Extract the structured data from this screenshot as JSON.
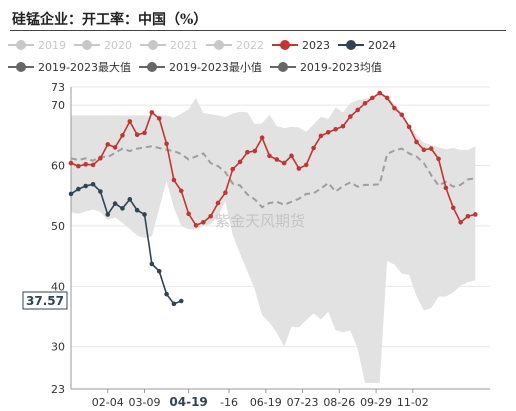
{
  "title": "硅锰企业：开工率：中国（%）",
  "watermark": "紫金天风期货",
  "colors": {
    "series_2023": "#c23531",
    "series_2024": "#2f4554",
    "avg": "#9e9e9e",
    "band": "#e2e2e2",
    "legend_disabled": "#c8c8c8",
    "legend_enabled_max_min": "#666666"
  },
  "legend": [
    {
      "label": "2019",
      "enabled": false,
      "color": "#c8c8c8",
      "icon": "line-circle-icon"
    },
    {
      "label": "2020",
      "enabled": false,
      "color": "#c8c8c8",
      "icon": "line-circle-icon"
    },
    {
      "label": "2021",
      "enabled": false,
      "color": "#c8c8c8",
      "icon": "line-circle-icon"
    },
    {
      "label": "2022",
      "enabled": false,
      "color": "#c8c8c8",
      "icon": "line-circle-icon"
    },
    {
      "label": "2023",
      "enabled": true,
      "color": "#c23531",
      "icon": "line-circle-icon"
    },
    {
      "label": "2024",
      "enabled": true,
      "color": "#2f4554",
      "icon": "line-circle-icon"
    },
    {
      "label": "2019-2023最大值",
      "enabled": true,
      "color": "#666666",
      "icon": "line-circle-icon"
    },
    {
      "label": "2019-2023最小值",
      "enabled": true,
      "color": "#666666",
      "icon": "line-circle-icon"
    },
    {
      "label": "2019-2023均值",
      "enabled": true,
      "color": "#666666",
      "icon": "line-circle-icon"
    }
  ],
  "chart_data": {
    "type": "line",
    "title": "硅锰企业：开工率：中国（%）",
    "ylim": [
      23,
      73
    ],
    "yticks": [
      23,
      30,
      40,
      50,
      60,
      70,
      73
    ],
    "x_range": [
      0,
      57
    ],
    "xticks": [
      {
        "label": "02-04",
        "x": 5
      },
      {
        "label": "03-09",
        "x": 10
      },
      {
        "label": "04-19",
        "x": 16,
        "highlight": true
      },
      {
        "label": "-16",
        "x": 21.5
      },
      {
        "label": "06-19",
        "x": 26.5
      },
      {
        "label": "07-23",
        "x": 31.5
      },
      {
        "label": "08-26",
        "x": 36.5
      },
      {
        "label": "09-29",
        "x": 41.5
      },
      {
        "label": "11-02",
        "x": 46.5
      }
    ],
    "last_value_label": "37.57",
    "series": [
      {
        "name": "2023",
        "values": [
          60.4,
          59.9,
          60.2,
          60.1,
          61.2,
          63.5,
          63.0,
          65.0,
          67.3,
          65.1,
          65.4,
          68.8,
          67.8,
          63.6,
          57.6,
          55.8,
          52.0,
          50.1,
          50.6,
          51.6,
          53.8,
          55.5,
          59.4,
          60.6,
          62.2,
          62.4,
          64.6,
          61.6,
          61.0,
          60.4,
          61.6,
          59.5,
          60.1,
          62.9,
          64.9,
          65.5,
          66.0,
          66.5,
          68.1,
          69.2,
          70.3,
          71.2,
          72.0,
          71.2,
          69.5,
          68.4,
          66.4,
          63.9,
          62.6,
          62.8,
          61.1,
          56.3,
          53.0,
          50.6,
          51.6,
          51.9
        ]
      },
      {
        "name": "2024",
        "values": [
          55.3,
          56.1,
          56.6,
          56.9,
          55.7,
          51.9,
          53.7,
          52.9,
          54.4,
          52.6,
          51.9,
          43.7,
          42.5,
          38.7,
          37.1,
          37.57
        ]
      },
      {
        "name": "2019-2023最大值",
        "values": [
          68.3,
          68.3,
          68.3,
          68.3,
          68.3,
          68.3,
          68.3,
          68.3,
          68.3,
          68.3,
          68.3,
          68.3,
          68.3,
          68.3,
          67.9,
          68.6,
          69.3,
          71.2,
          68.7,
          68.5,
          68.3,
          68.0,
          68.6,
          68.9,
          68.8,
          66.9,
          67.0,
          68.4,
          66.5,
          66.2,
          66.4,
          66.3,
          65.6,
          66.8,
          68.1,
          67.7,
          69.6,
          68.8,
          70.3,
          70.8,
          71.0,
          71.4,
          72.0,
          71.5,
          70.2,
          68.6,
          66.9,
          65.0,
          63.8,
          63.4,
          63.0,
          62.7,
          62.9,
          62.6,
          62.6,
          63.2
        ]
      },
      {
        "name": "2019-2023最小值",
        "values": [
          52.3,
          52.0,
          52.4,
          52.7,
          52.3,
          51.0,
          51.4,
          50.5,
          49.5,
          48.4,
          48.0,
          48.3,
          52.9,
          57.4,
          53.0,
          50.0,
          49.4,
          49.5,
          50.0,
          50.3,
          51.6,
          54.1,
          48.5,
          45.4,
          42.5,
          39.5,
          35.2,
          34.0,
          32.3,
          30.0,
          33.3,
          33.2,
          34.4,
          35.5,
          34.5,
          35.8,
          32.7,
          32.4,
          32.7,
          29.6,
          24.0,
          24.0,
          24.0,
          44.2,
          43.6,
          42.1,
          41.9,
          38.4,
          36.0,
          36.4,
          38.3,
          38.3,
          39.0,
          40.1,
          40.7,
          41.0
        ]
      },
      {
        "name": "2019-2023均值",
        "values": [
          61.2,
          60.9,
          61.2,
          60.8,
          61.5,
          61.4,
          62.1,
          62.8,
          62.4,
          62.8,
          63.0,
          63.2,
          62.9,
          62.6,
          62.4,
          61.9,
          61.0,
          61.5,
          62.0,
          60.4,
          59.9,
          58.9,
          57.0,
          56.7,
          55.2,
          54.4,
          53.1,
          53.8,
          54.0,
          53.5,
          54.0,
          54.5,
          55.3,
          55.4,
          56.2,
          57.1,
          55.7,
          56.6,
          57.2,
          56.5,
          56.8,
          56.8,
          56.9,
          61.9,
          62.5,
          62.8,
          62.0,
          61.5,
          60.4,
          58.4,
          56.7,
          57.3,
          56.5,
          56.8,
          57.7,
          57.9
        ]
      }
    ]
  }
}
